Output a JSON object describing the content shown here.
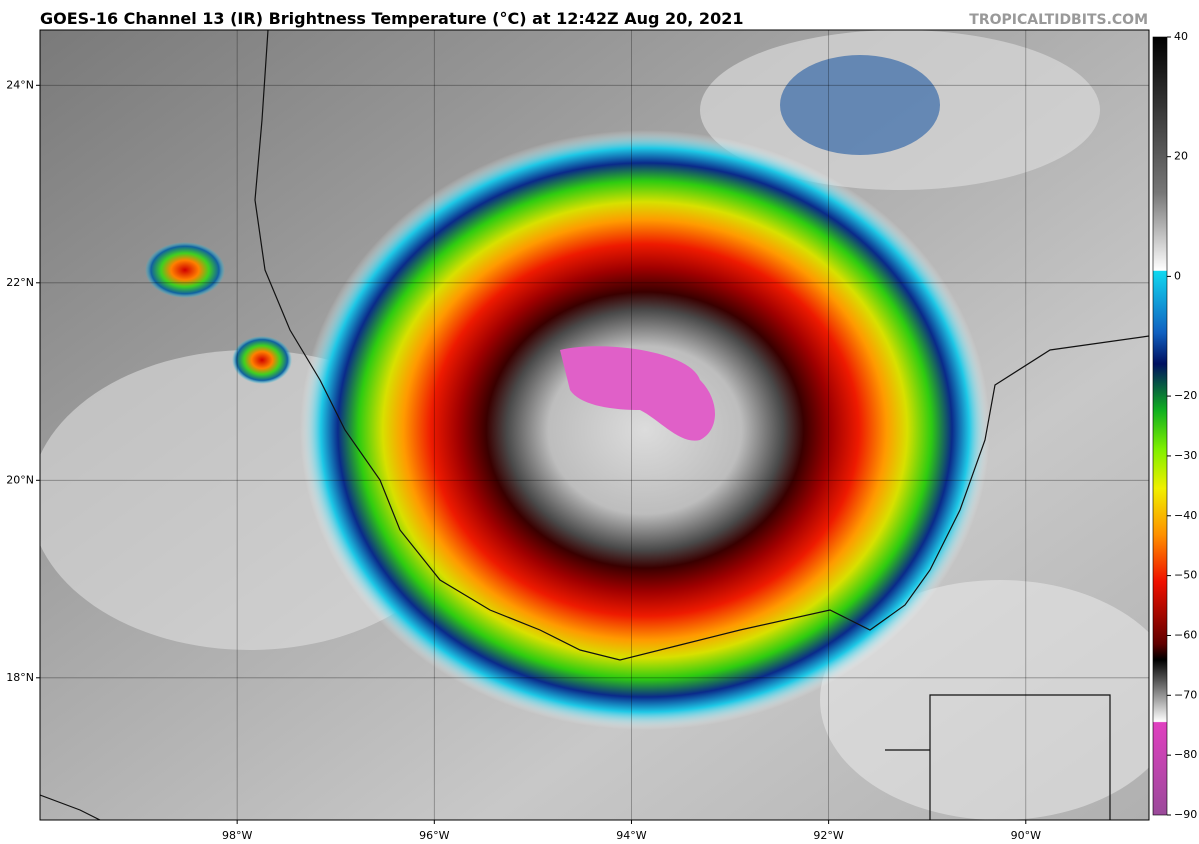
{
  "header": {
    "title": "GOES-16 Channel 13 (IR) Brightness Temperature (°C) at 12:42Z Aug 20, 2021",
    "source": "TROPICALTIDBITS.COM"
  },
  "map": {
    "lonlim": [
      -100,
      -88.75
    ],
    "latlim": [
      16.56,
      24.56
    ],
    "lon_ticks": [
      {
        "value": -98,
        "label": "98°W"
      },
      {
        "value": -96,
        "label": "96°W"
      },
      {
        "value": -94,
        "label": "94°W"
      },
      {
        "value": -92,
        "label": "92°W"
      },
      {
        "value": -90,
        "label": "90°W"
      }
    ],
    "lat_ticks": [
      {
        "value": 24,
        "label": "24°N"
      },
      {
        "value": 22,
        "label": "22°N"
      },
      {
        "value": 20,
        "label": "20°N"
      },
      {
        "value": 18,
        "label": "18°N"
      }
    ]
  },
  "colorbar": {
    "lim": [
      -90,
      40
    ],
    "ticks": [
      40,
      20,
      0,
      {
        "value": -20,
        "label": "−20"
      },
      {
        "value": -30,
        "label": "−30"
      },
      {
        "value": -40,
        "label": "−40"
      },
      {
        "value": -50,
        "label": "−50"
      },
      {
        "value": -60,
        "label": "−60"
      },
      {
        "value": -70,
        "label": "−70"
      },
      {
        "value": -80,
        "label": "−80"
      },
      {
        "value": -90,
        "label": "−90"
      }
    ]
  }
}
